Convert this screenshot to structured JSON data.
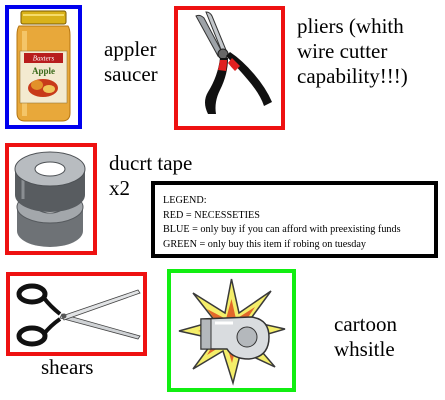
{
  "items": {
    "applesauce": {
      "label_line1": "appler",
      "label_line2": "saucer",
      "jar_brand": "Baxters",
      "jar_text": "Apple",
      "border_color": "#0000ee"
    },
    "pliers": {
      "label_line1": "pliers (whith",
      "label_line2": "wire cutter",
      "label_line3": "capability!!!)",
      "border_color": "#ee1111"
    },
    "duct_tape": {
      "label_line1": "ducrt tape",
      "label_line2": "x2",
      "border_color": "#ee1111"
    },
    "shears": {
      "label": "shears",
      "border_color": "#ee1111"
    },
    "whistle": {
      "label_line1": "cartoon",
      "label_line2": "whsitle",
      "border_color": "#11ee11"
    }
  },
  "legend": {
    "title": "LEGEND:",
    "red": "RED =  NECESSETIES",
    "blue": "BLUE = only buy if you can afford with preexisting funds",
    "green": "GREEN = only buy this item if robing on tuesday"
  }
}
